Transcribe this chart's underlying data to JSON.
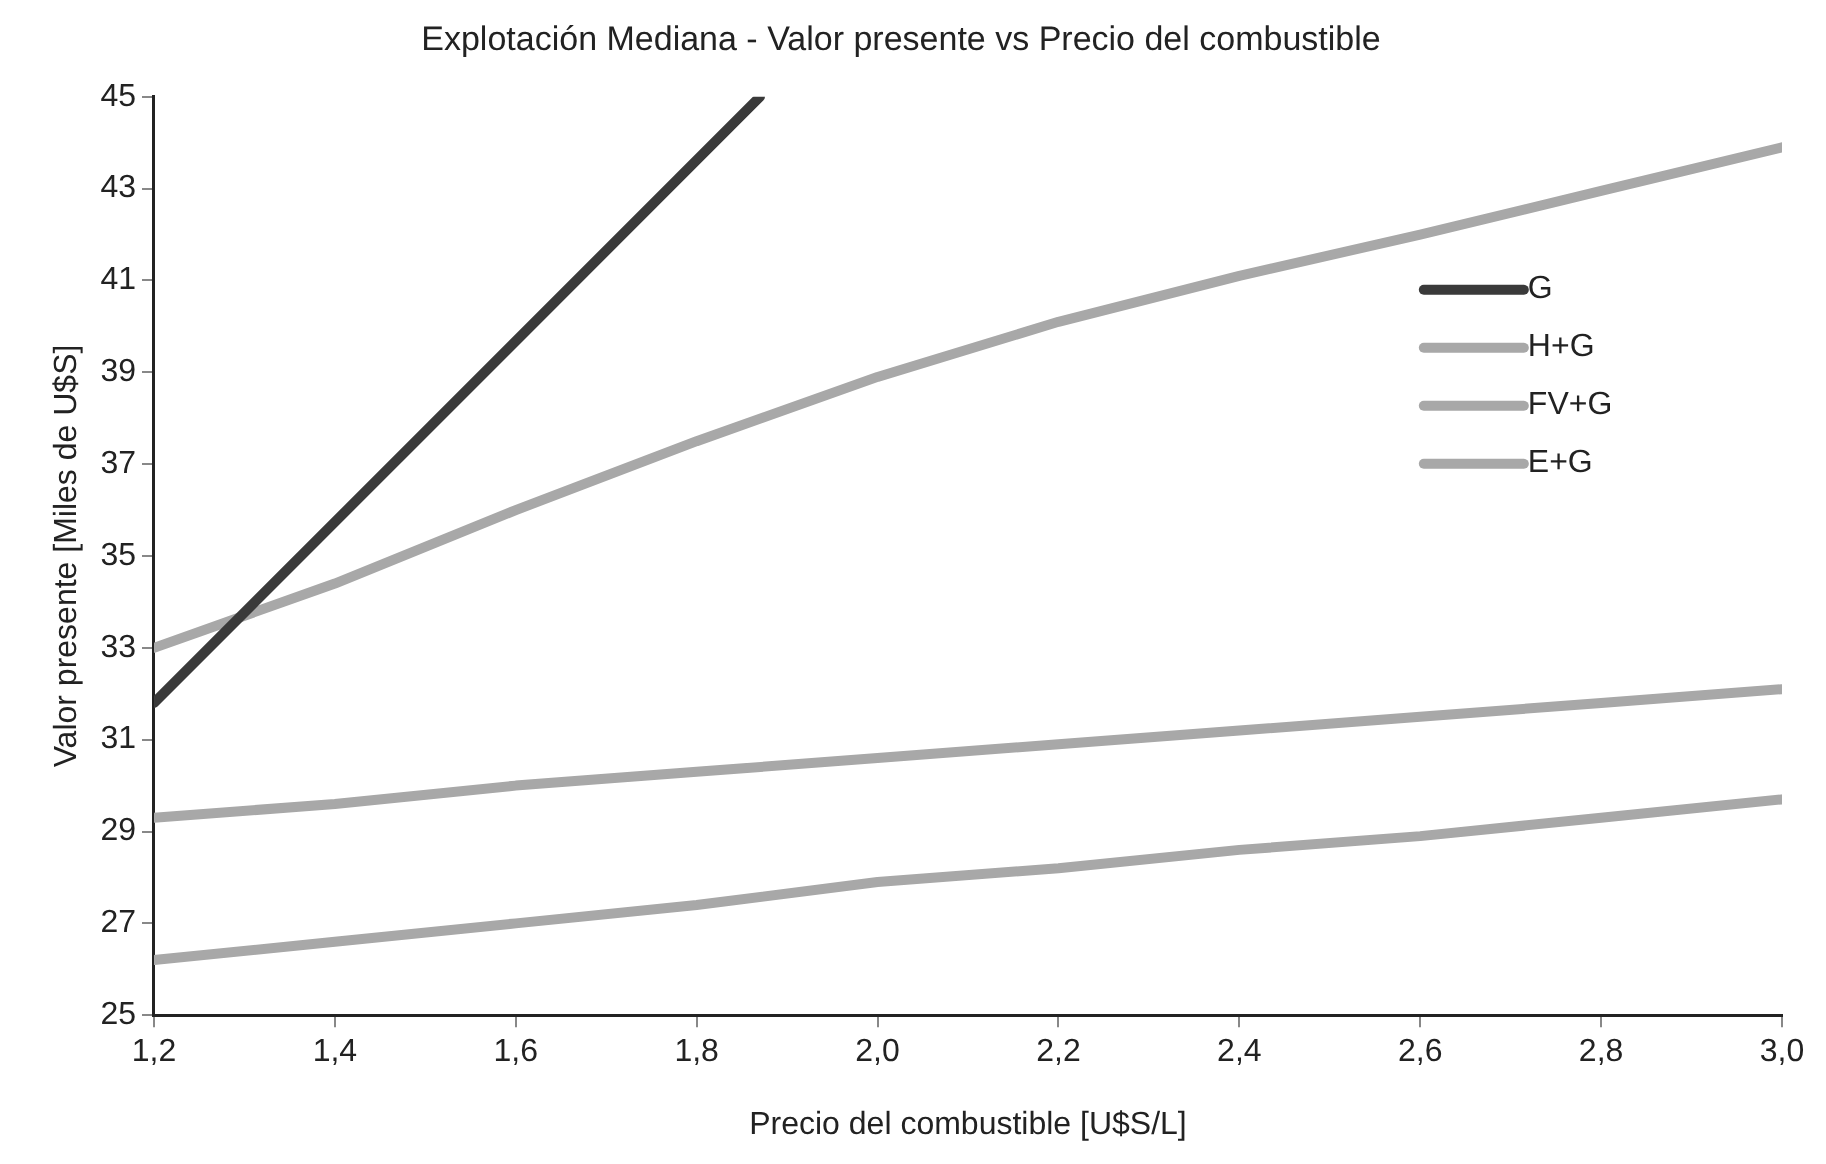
{
  "chart_data": {
    "type": "line",
    "title": "Explotación Mediana - Valor presente vs Precio del combustible",
    "xlabel": "Precio del combustible [U$S/L]",
    "ylabel": "Valor presente [Miles de U$S]",
    "x": [
      1.2,
      1.4,
      1.6,
      1.8,
      2.0,
      2.2,
      2.4,
      2.6,
      2.8,
      3.0
    ],
    "series": [
      {
        "name": "G",
        "color": "#3a3a3a",
        "x": [
          1.2,
          1.87
        ],
        "values": [
          31.8,
          45
        ]
      },
      {
        "name": "H+G",
        "color": "#a8a8a8",
        "values": [
          33.0,
          34.4,
          36.0,
          37.5,
          38.9,
          40.1,
          41.1,
          42.0,
          42.95,
          43.9
        ]
      },
      {
        "name": "FV+G",
        "color": "#a8a8a8",
        "values": [
          29.3,
          29.6,
          30.0,
          30.3,
          30.6,
          30.9,
          31.2,
          31.5,
          31.8,
          32.1
        ]
      },
      {
        "name": "E+G",
        "color": "#a8a8a8",
        "values": [
          26.2,
          26.6,
          27.0,
          27.4,
          27.9,
          28.2,
          28.6,
          28.9,
          29.3,
          29.7
        ]
      }
    ],
    "xlim": [
      1.2,
      3.0
    ],
    "xticks": [
      {
        "value": 1.2,
        "label": "1,2"
      },
      {
        "value": 1.4,
        "label": "1,4"
      },
      {
        "value": 1.6,
        "label": "1,6"
      },
      {
        "value": 1.8,
        "label": "1,8"
      },
      {
        "value": 2.0,
        "label": "2,0"
      },
      {
        "value": 2.2,
        "label": "2,2"
      },
      {
        "value": 2.4,
        "label": "2,4"
      },
      {
        "value": 2.6,
        "label": "2,6"
      },
      {
        "value": 2.8,
        "label": "2,8"
      },
      {
        "value": 3.0,
        "label": "3,0"
      }
    ],
    "ylim": [
      25,
      45
    ],
    "yticks": [
      25,
      27,
      29,
      31,
      33,
      35,
      37,
      39,
      41,
      43,
      45
    ],
    "grid": false,
    "legend": "right",
    "marker": "none",
    "line_style": "solid"
  }
}
